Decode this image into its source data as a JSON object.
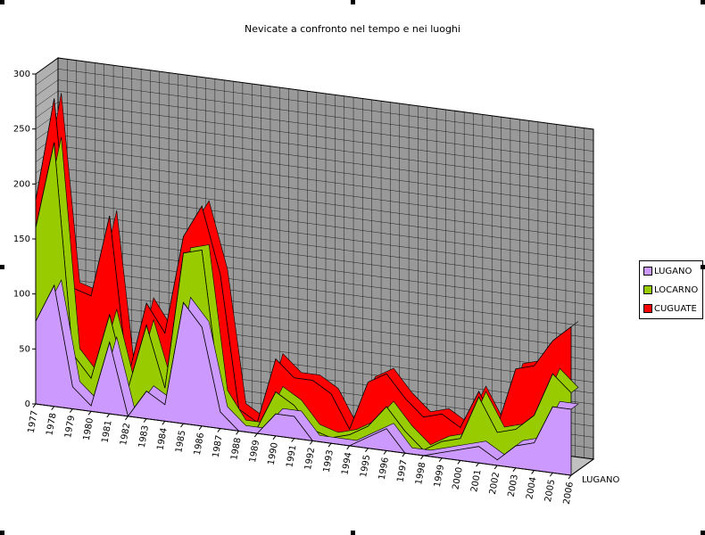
{
  "chart_data": {
    "type": "area",
    "title": "Nevicate a confronto nel tempo e nei luoghi",
    "categories": [
      "1977",
      "1978",
      "1979",
      "1980",
      "1981",
      "1982",
      "1983",
      "1984",
      "1985",
      "1986",
      "1987",
      "1988",
      "1989",
      "1990",
      "1991",
      "1992",
      "1993",
      "1994",
      "1995",
      "1996",
      "1997",
      "1998",
      "1999",
      "2000",
      "2001",
      "2002",
      "2003",
      "2004",
      "2005",
      "2006"
    ],
    "yticks": [
      "0",
      "50",
      "100",
      "150",
      "200",
      "250",
      "300"
    ],
    "ylim": [
      0,
      300
    ],
    "depth_label": "LUGANO",
    "series": [
      {
        "name": "LUGANO",
        "color": "#cc99ff",
        "values": [
          75,
          110,
          20,
          5,
          65,
          0,
          25,
          15,
          110,
          90,
          15,
          0,
          0,
          20,
          20,
          0,
          0,
          0,
          10,
          20,
          0,
          0,
          5,
          10,
          15,
          5,
          20,
          25,
          60,
          60
        ]
      },
      {
        "name": "LOCARNO",
        "color": "#99cc00",
        "values": [
          85,
          130,
          30,
          25,
          25,
          25,
          60,
          15,
          45,
          70,
          15,
          5,
          5,
          20,
          10,
          10,
          5,
          10,
          10,
          20,
          20,
          5,
          10,
          10,
          45,
          25,
          15,
          25,
          30,
          15
        ]
      },
      {
        "name": "CUGUATE",
        "color": "#ff0000",
        "values": [
          25,
          40,
          60,
          75,
          90,
          10,
          20,
          50,
          15,
          40,
          110,
          15,
          5,
          30,
          25,
          45,
          40,
          5,
          40,
          30,
          30,
          30,
          25,
          10,
          5,
          5,
          55,
          45,
          30,
          60
        ]
      }
    ]
  },
  "colors": {
    "wall": "#999999",
    "grid": "#000000",
    "floor": "#c0c0c0"
  }
}
